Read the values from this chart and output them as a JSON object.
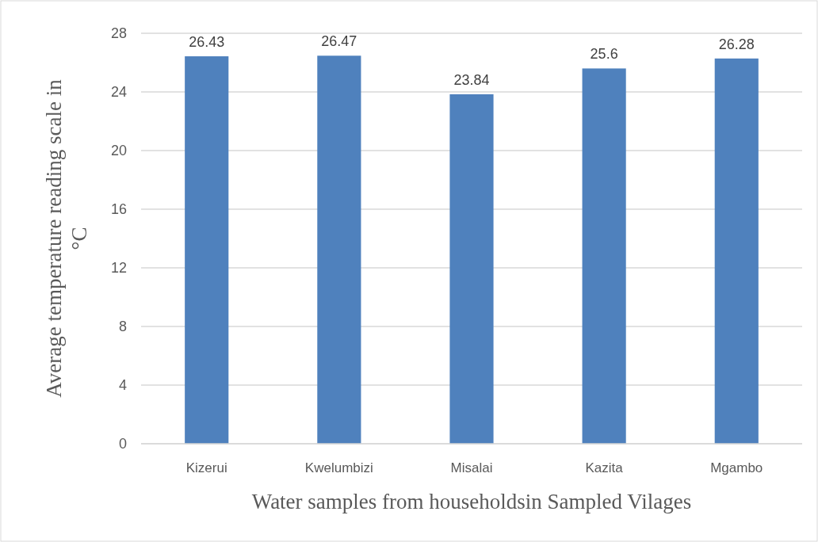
{
  "chart_data": {
    "type": "bar",
    "xlabel": "Water samples from householdsin Sampled Vilages",
    "ylabel": "Average temperature reading scale in °C",
    "categories": [
      "Kizerui",
      "Kwelumbizi",
      "Misalai",
      "Kazita",
      "Mgambo"
    ],
    "values": [
      26.43,
      26.47,
      23.84,
      25.6,
      26.28
    ],
    "color": "#4f81bd",
    "ylim": [
      0,
      28
    ],
    "yticks": [
      0,
      4,
      8,
      12,
      16,
      20,
      24,
      28
    ],
    "grid": "y",
    "data_labels": true
  }
}
